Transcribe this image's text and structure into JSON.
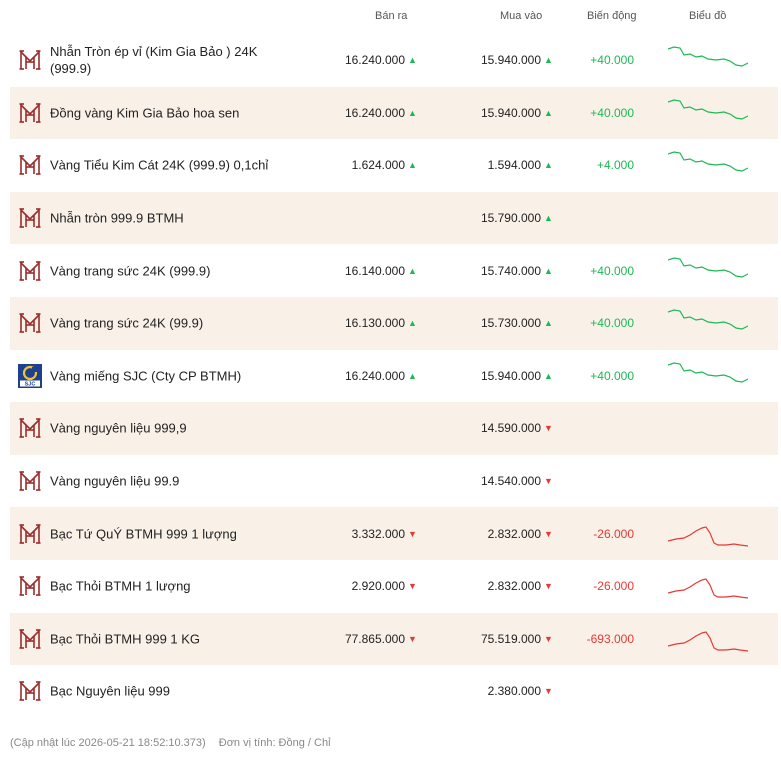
{
  "header": {
    "sell_label": "Bán ra",
    "buy_label": "Mua vào",
    "change_label": "Biến động",
    "chart_label": "Biểu đồ"
  },
  "colors": {
    "up": "#1db954",
    "down": "#e53935",
    "alt_row": "#f9f1e8",
    "logo": "#9b2c2c"
  },
  "rows": [
    {
      "name": "Nhẫn Tròn ép vỉ (Kim Gia Bảo ) 24K (999.9)",
      "sell": "16.240.000",
      "sell_dir": "up",
      "buy": "15.940.000",
      "buy_dir": "up",
      "change": "+40.000",
      "trend": "down",
      "logo": "btmh-logo"
    },
    {
      "name": "Đồng vàng Kim Gia Bảo hoa sen",
      "sell": "16.240.000",
      "sell_dir": "up",
      "buy": "15.940.000",
      "buy_dir": "up",
      "change": "+40.000",
      "trend": "down",
      "logo": "btmh-logo"
    },
    {
      "name": "Vàng Tiểu Kim Cát 24K (999.9) 0,1chỉ",
      "sell": "1.624.000",
      "sell_dir": "up",
      "buy": "1.594.000",
      "buy_dir": "up",
      "change": "+4.000",
      "trend": "down",
      "logo": "btmh-logo"
    },
    {
      "name": "Nhẫn tròn 999.9 BTMH",
      "sell": "",
      "sell_dir": "",
      "buy": "15.790.000",
      "buy_dir": "up",
      "change": "",
      "trend": "",
      "logo": "btmh-logo"
    },
    {
      "name": "Vàng trang sức 24K (999.9)",
      "sell": "16.140.000",
      "sell_dir": "up",
      "buy": "15.740.000",
      "buy_dir": "up",
      "change": "+40.000",
      "trend": "down",
      "logo": "btmh-logo"
    },
    {
      "name": "Vàng trang sức 24K (99.9)",
      "sell": "16.130.000",
      "sell_dir": "up",
      "buy": "15.730.000",
      "buy_dir": "up",
      "change": "+40.000",
      "trend": "down",
      "logo": "btmh-logo"
    },
    {
      "name": "Vàng miếng SJC (Cty CP BTMH)",
      "sell": "16.240.000",
      "sell_dir": "up",
      "buy": "15.940.000",
      "buy_dir": "up",
      "change": "+40.000",
      "trend": "down",
      "logo": "sjc-logo"
    },
    {
      "name": "Vàng nguyên liệu 999,9",
      "sell": "",
      "sell_dir": "",
      "buy": "14.590.000",
      "buy_dir": "down",
      "change": "",
      "trend": "",
      "logo": "btmh-logo"
    },
    {
      "name": "Vàng nguyên liệu 99.9",
      "sell": "",
      "sell_dir": "",
      "buy": "14.540.000",
      "buy_dir": "down",
      "change": "",
      "trend": "",
      "logo": "btmh-logo"
    },
    {
      "name": "Bạc Tứ QuÝ BTMH 999 1 lượng",
      "sell": "3.332.000",
      "sell_dir": "down",
      "buy": "2.832.000",
      "buy_dir": "down",
      "change": "-26.000",
      "trend": "silver",
      "logo": "btmh-logo"
    },
    {
      "name": "Bạc Thỏi BTMH 1 lượng",
      "sell": "2.920.000",
      "sell_dir": "down",
      "buy": "2.832.000",
      "buy_dir": "down",
      "change": "-26.000",
      "trend": "silver",
      "logo": "btmh-logo"
    },
    {
      "name": "Bạc Thỏi BTMH 999 1 KG",
      "sell": "77.865.000",
      "sell_dir": "down",
      "buy": "75.519.000",
      "buy_dir": "down",
      "change": "-693.000",
      "trend": "silver",
      "logo": "btmh-logo"
    },
    {
      "name": "Bạc Nguyên liệu 999",
      "sell": "",
      "sell_dir": "",
      "buy": "2.380.000",
      "buy_dir": "down",
      "change": "",
      "trend": "",
      "logo": "btmh-logo"
    }
  ],
  "sjc_logo_text": "SJC",
  "footer": {
    "updated": "(Cập nhật lúc 2026-05-21 18:52:10.373)",
    "unit": "Đơn vị tính: Đồng / Chỉ"
  }
}
